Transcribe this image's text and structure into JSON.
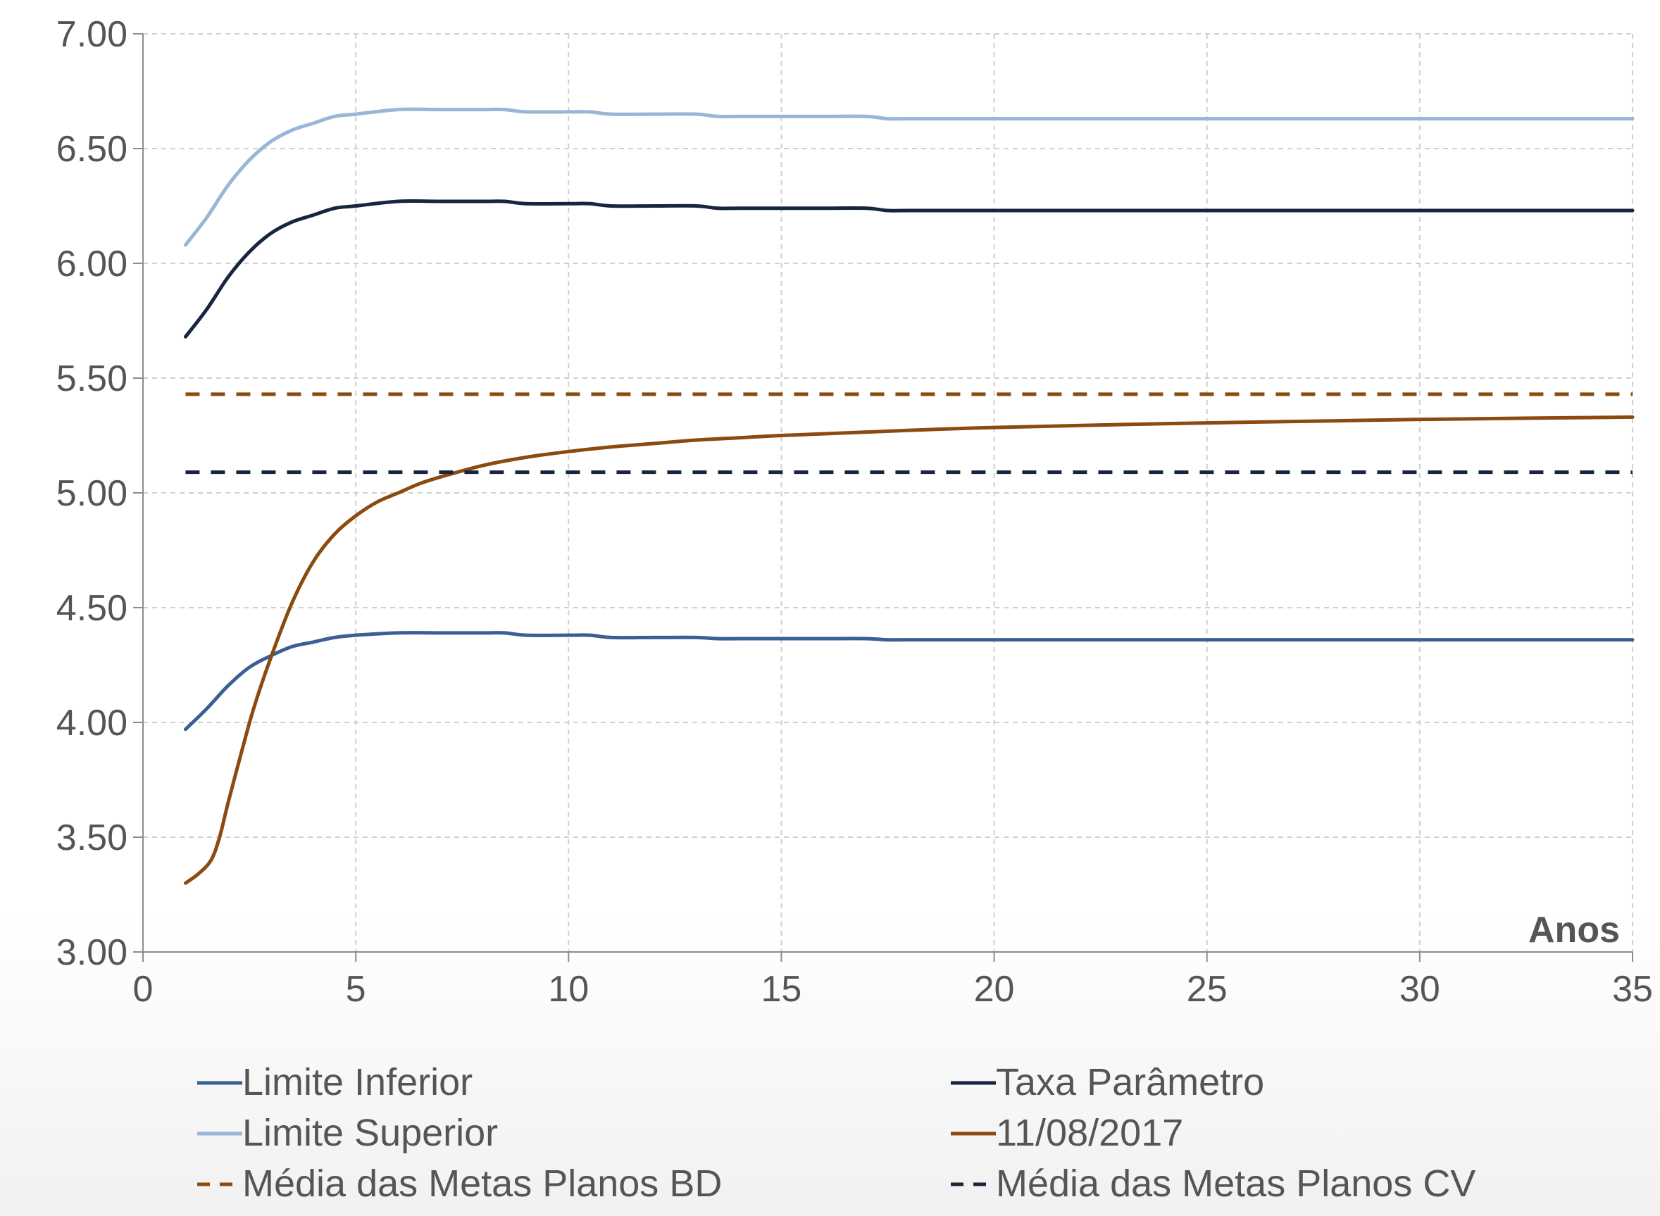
{
  "chart_data": {
    "type": "line",
    "xlabel": "Anos",
    "ylabel": "",
    "xlim": [
      0,
      35
    ],
    "ylim": [
      3.0,
      7.0
    ],
    "x_ticks": [
      "0",
      "5",
      "10",
      "15",
      "20",
      "25",
      "30",
      "35"
    ],
    "y_ticks": [
      "3.00",
      "3.50",
      "4.00",
      "4.50",
      "5.00",
      "5.50",
      "6.00",
      "6.50",
      "7.00"
    ],
    "grid": true,
    "legend_position": "bottom",
    "series": [
      {
        "name": "Limite Inferior",
        "color": "#3a5f95",
        "dash": false,
        "x": [
          1,
          1.5,
          2,
          2.5,
          3,
          3.5,
          4,
          4.5,
          5,
          6,
          7,
          8,
          8.5,
          9,
          10,
          10.5,
          11,
          12,
          13,
          13.5,
          14,
          15,
          16,
          17,
          17.5,
          18,
          20,
          25,
          30,
          35
        ],
        "y": [
          3.97,
          4.06,
          4.16,
          4.24,
          4.29,
          4.33,
          4.35,
          4.37,
          4.38,
          4.39,
          4.39,
          4.39,
          4.39,
          4.38,
          4.38,
          4.38,
          4.37,
          4.37,
          4.37,
          4.365,
          4.365,
          4.365,
          4.365,
          4.365,
          4.36,
          4.36,
          4.36,
          4.36,
          4.36,
          4.36
        ]
      },
      {
        "name": "Taxa Parâmetro",
        "color": "#17263e",
        "dash": false,
        "x": [
          1,
          1.5,
          2,
          2.5,
          3,
          3.5,
          4,
          4.5,
          5,
          6,
          7,
          8,
          8.5,
          9,
          10,
          10.5,
          11,
          12,
          13,
          13.5,
          14,
          15,
          16,
          17,
          17.5,
          18,
          20,
          25,
          30,
          35
        ],
        "y": [
          5.68,
          5.8,
          5.94,
          6.05,
          6.13,
          6.18,
          6.21,
          6.24,
          6.25,
          6.27,
          6.27,
          6.27,
          6.27,
          6.26,
          6.26,
          6.26,
          6.25,
          6.25,
          6.25,
          6.24,
          6.24,
          6.24,
          6.24,
          6.24,
          6.23,
          6.23,
          6.23,
          6.23,
          6.23,
          6.23
        ]
      },
      {
        "name": "Limite Superior",
        "color": "#99b5d8",
        "dash": false,
        "x": [
          1,
          1.5,
          2,
          2.5,
          3,
          3.5,
          4,
          4.5,
          5,
          6,
          7,
          8,
          8.5,
          9,
          10,
          10.5,
          11,
          12,
          13,
          13.5,
          14,
          15,
          16,
          17,
          17.5,
          18,
          20,
          25,
          30,
          35
        ],
        "y": [
          6.08,
          6.2,
          6.34,
          6.45,
          6.53,
          6.58,
          6.61,
          6.64,
          6.65,
          6.67,
          6.67,
          6.67,
          6.67,
          6.66,
          6.66,
          6.66,
          6.65,
          6.65,
          6.65,
          6.64,
          6.64,
          6.64,
          6.64,
          6.64,
          6.63,
          6.63,
          6.63,
          6.63,
          6.63,
          6.63
        ]
      },
      {
        "name": "11/08/2017",
        "color": "#8b4a10",
        "dash": false,
        "x": [
          1,
          1.3,
          1.6,
          1.8,
          2,
          2.3,
          2.6,
          3,
          3.5,
          4,
          4.5,
          5,
          5.5,
          6,
          6.5,
          7,
          8,
          9,
          10,
          11,
          12,
          13,
          14,
          15,
          17,
          20,
          25,
          30,
          35
        ],
        "y": [
          3.3,
          3.34,
          3.4,
          3.5,
          3.65,
          3.86,
          4.06,
          4.28,
          4.52,
          4.7,
          4.82,
          4.9,
          4.96,
          5.0,
          5.04,
          5.07,
          5.12,
          5.155,
          5.18,
          5.2,
          5.215,
          5.23,
          5.24,
          5.25,
          5.265,
          5.285,
          5.305,
          5.32,
          5.33
        ]
      },
      {
        "name": "Média das Metas Planos BD",
        "color": "#8b4a10",
        "dash": true,
        "x": [
          1,
          35
        ],
        "y": [
          5.43,
          5.43
        ]
      },
      {
        "name": "Média das Metas Planos CV",
        "color": "#17263e",
        "dash": true,
        "x": [
          1,
          35
        ],
        "y": [
          5.09,
          5.09
        ]
      }
    ]
  }
}
